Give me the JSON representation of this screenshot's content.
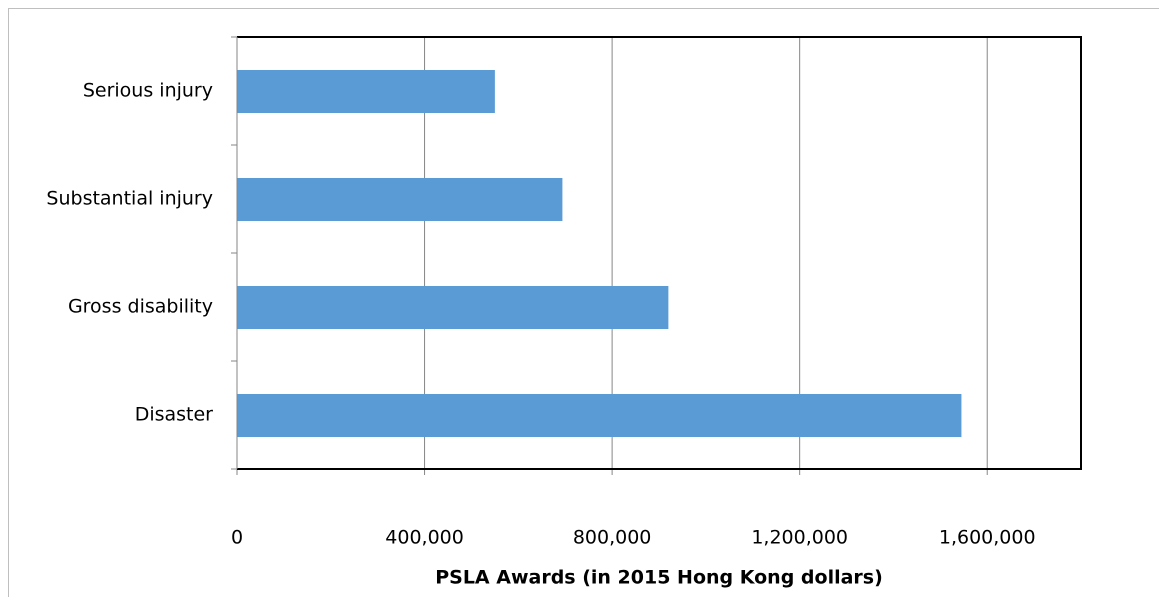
{
  "chart_data": {
    "type": "bar",
    "orientation": "horizontal",
    "x_label": "PSLA Awards (in 2015 Hong Kong dollars)",
    "categories": [
      "Serious injury",
      "Substantial injury",
      "Gross disability",
      "Disaster"
    ],
    "values": [
      550000,
      694000,
      920000,
      1545000
    ],
    "color": "#5b9bd5",
    "xlim": [
      0,
      1800000
    ],
    "xticks": [
      0,
      {
        "value": 400000,
        "label": "400,000"
      },
      {
        "value": 800000,
        "label": "800,000"
      },
      {
        "value": 1200000,
        "label": "1,200,000"
      },
      {
        "value": 1600000,
        "label": "1,600,000"
      }
    ],
    "grid": true
  }
}
